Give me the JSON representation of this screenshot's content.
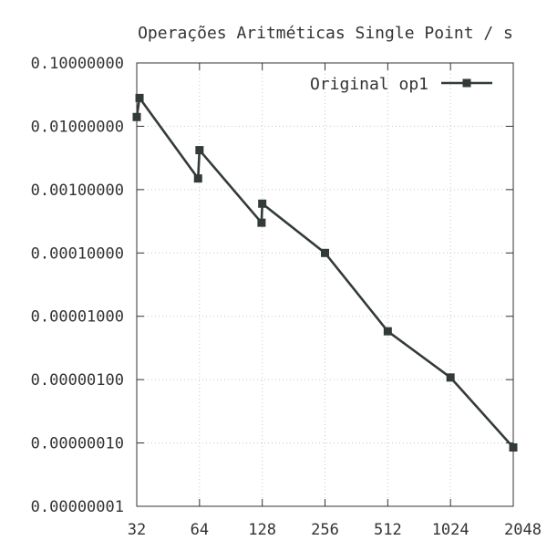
{
  "chart_data": {
    "type": "line",
    "title": "Operações Aritméticas Single Point / s",
    "xlabel": "",
    "ylabel": "",
    "xscale": "log2",
    "yscale": "log10",
    "xlim": [
      32,
      2048
    ],
    "ylim": [
      1e-08,
      0.1
    ],
    "x_ticks": [
      "32",
      "64",
      "128",
      "256",
      "512",
      "1024",
      "2048"
    ],
    "y_ticks": [
      "0.00000001",
      "0.00000010",
      "0.00000100",
      "0.00001000",
      "0.00010000",
      "0.00100000",
      "0.01000000",
      "0.10000000"
    ],
    "grid": true,
    "legend_position": "top-right",
    "series": [
      {
        "name": "Original op1",
        "color": "#333b3a",
        "marker": "square",
        "points": [
          {
            "x": 32,
            "y": 0.014
          },
          {
            "x": 33,
            "y": 0.028
          },
          {
            "x": 63,
            "y": 0.0015
          },
          {
            "x": 64,
            "y": 0.0042
          },
          {
            "x": 127,
            "y": 0.0003
          },
          {
            "x": 128,
            "y": 0.0006
          },
          {
            "x": 256,
            "y": 0.0001
          },
          {
            "x": 512,
            "y": 5.8e-06
          },
          {
            "x": 1024,
            "y": 1.08e-06
          },
          {
            "x": 2048,
            "y": 8.5e-08
          }
        ]
      }
    ]
  }
}
